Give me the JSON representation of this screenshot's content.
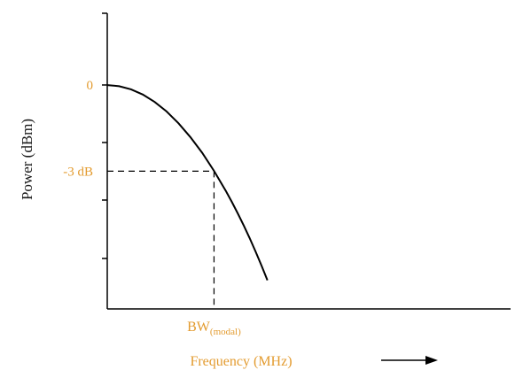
{
  "chart_data": {
    "type": "line",
    "xlabel": "Frequency (MHz)",
    "ylabel": "Power (dBm)",
    "y_tick_labels": [
      "0",
      "-3 dB"
    ],
    "bandwidth_label": {
      "base": "BW",
      "subscript": "(modal)"
    },
    "series": [
      {
        "x": [
          0.0,
          0.1,
          0.2,
          0.3,
          0.4,
          0.5,
          0.6,
          0.7,
          0.8,
          0.9,
          1.0,
          1.05,
          1.1,
          1.15,
          1.2,
          1.25,
          1.3,
          1.35
        ],
        "y": [
          0.0,
          -0.04,
          -0.15,
          -0.33,
          -0.59,
          -0.92,
          -1.33,
          -1.81,
          -2.36,
          -2.99,
          -3.69,
          -4.07,
          -4.47,
          -4.89,
          -5.33,
          -5.8,
          -6.29,
          -6.8
        ]
      }
    ],
    "markers": {
      "bw_x": 0.9,
      "minus3_y": -3.0
    },
    "ylim": [
      -7.8,
      2.5
    ],
    "xlim": [
      0,
      3.4
    ],
    "grid": false,
    "arrow_direction": "right",
    "colors": {
      "label": "#e39b2f",
      "axis": "#000000",
      "curve": "#000000",
      "ylabel": "#1a1a1a"
    }
  }
}
